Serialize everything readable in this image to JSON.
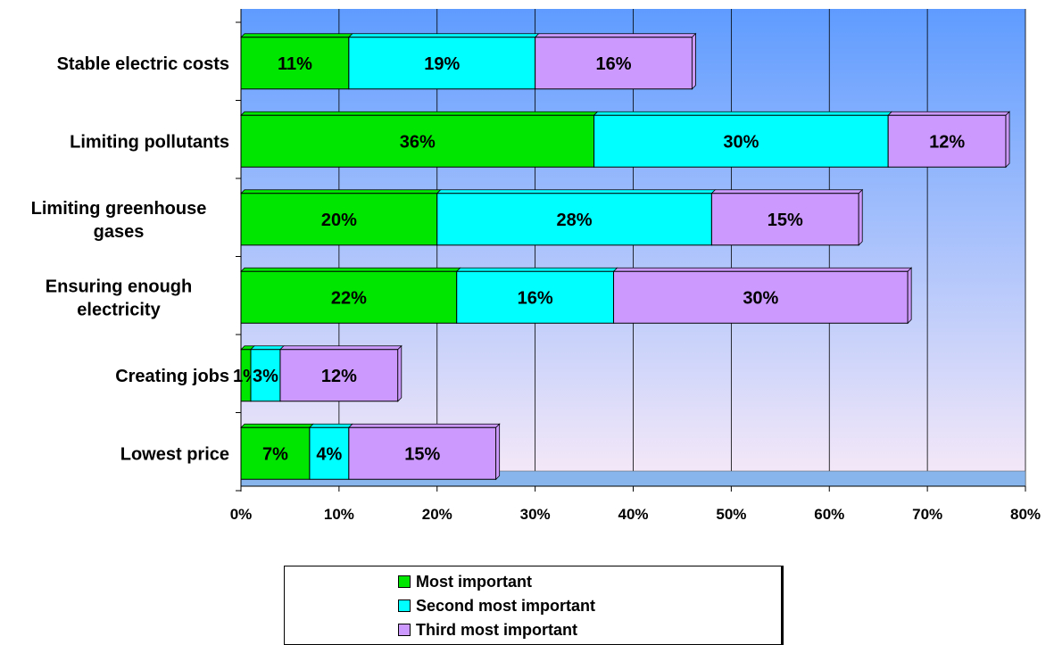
{
  "chart_data": {
    "type": "bar",
    "orientation": "horizontal",
    "stacked": true,
    "categories": [
      [
        "Stable electric costs"
      ],
      [
        "Limiting pollutants"
      ],
      [
        "Limiting greenhouse",
        "gases"
      ],
      [
        "Ensuring enough",
        "electricity"
      ],
      [
        "Creating jobs"
      ],
      [
        "Lowest price"
      ]
    ],
    "series": [
      {
        "name": "Most important",
        "color": "#00e600",
        "values": [
          11,
          36,
          20,
          22,
          1,
          7
        ],
        "labels": [
          "11%",
          "36%",
          "20%",
          "22%",
          "1%",
          "7%"
        ]
      },
      {
        "name": "Second most important",
        "color": "#00ffff",
        "values": [
          19,
          30,
          28,
          16,
          3,
          4
        ],
        "labels": [
          "19%",
          "30%",
          "28%",
          "16%",
          "3%",
          "4%"
        ]
      },
      {
        "name": "Third most important",
        "color": "#cc99ff",
        "values": [
          16,
          12,
          15,
          30,
          12,
          15
        ],
        "labels": [
          "16%",
          "12%",
          "15%",
          "30%",
          "12%",
          "15%"
        ]
      }
    ],
    "xlim": [
      0,
      80
    ],
    "x_ticks": [
      "0%",
      "10%",
      "20%",
      "30%",
      "40%",
      "50%",
      "60%",
      "70%",
      "80%"
    ],
    "grid": true,
    "legend_position": "bottom-center",
    "background_gradient": [
      "#5f9cff",
      "#f8eaf8"
    ],
    "title": "",
    "xlabel": "",
    "ylabel": ""
  }
}
